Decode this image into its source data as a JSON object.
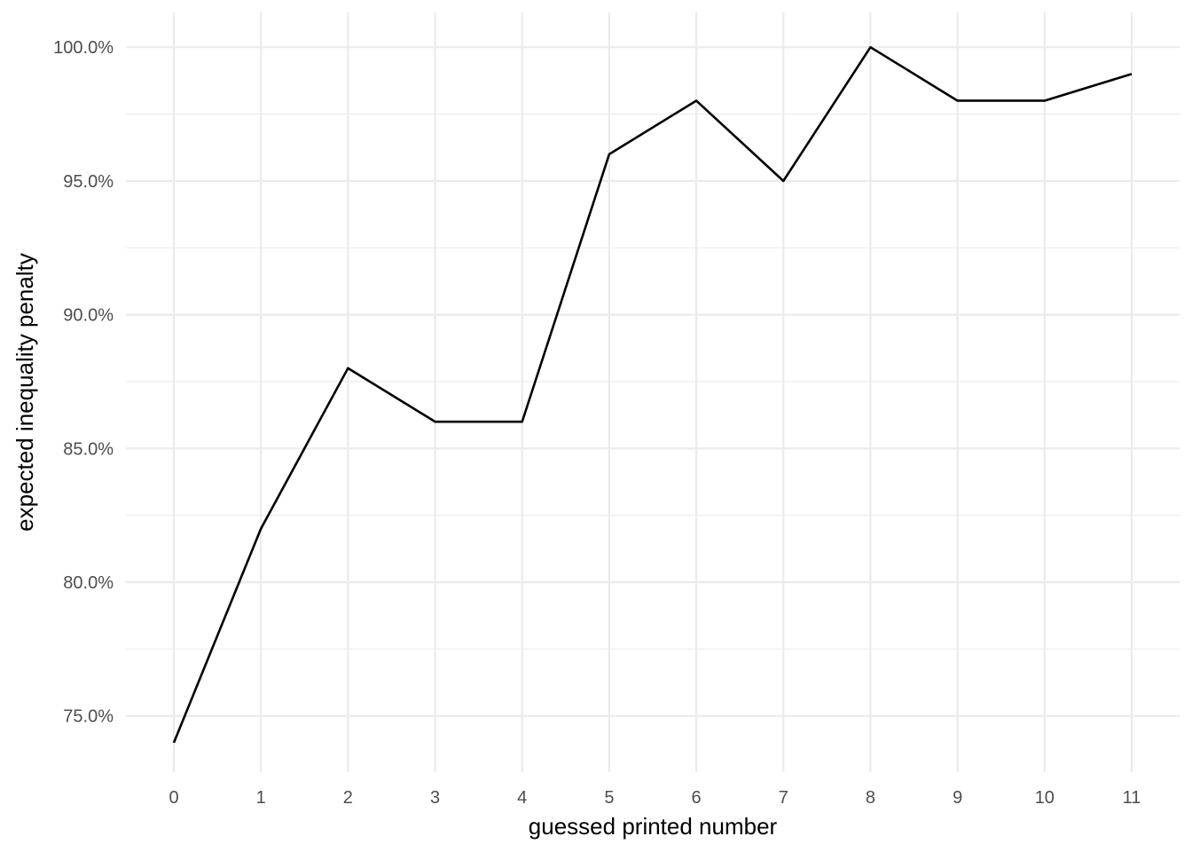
{
  "chart_data": {
    "type": "line",
    "title": "",
    "xlabel": "guessed printed number",
    "ylabel": "expected inequality penalty",
    "x": [
      0,
      1,
      2,
      3,
      4,
      5,
      6,
      7,
      8,
      9,
      10,
      11
    ],
    "x_ticks": [
      "0",
      "1",
      "2",
      "3",
      "4",
      "5",
      "6",
      "7",
      "8",
      "9",
      "10",
      "11"
    ],
    "y_ticks": [
      75,
      80,
      85,
      90,
      95,
      100
    ],
    "y_tick_labels": [
      "75.0%",
      "80.0%",
      "85.0%",
      "90.0%",
      "95.0%",
      "100.0%"
    ],
    "y_unit": "%",
    "xlim": [
      -0.55,
      11.55
    ],
    "ylim": [
      72.9,
      101.3
    ],
    "grid": true,
    "legend": "none",
    "series": [
      {
        "values": [
          74,
          82,
          88,
          86,
          86,
          96,
          98,
          95,
          100,
          98,
          98,
          99
        ],
        "color": "#000000"
      }
    ]
  }
}
